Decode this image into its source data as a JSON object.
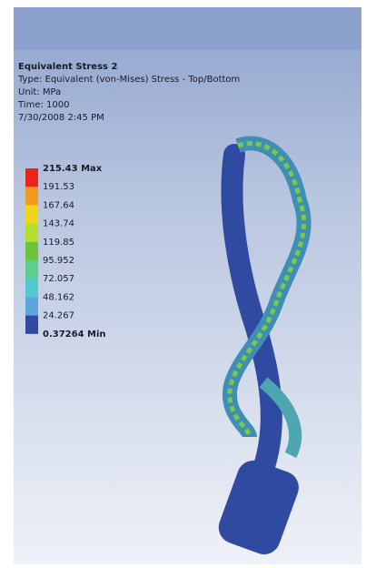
{
  "header": {
    "title": "Equivalent Stress 2",
    "type": "Type: Equivalent (von-Mises) Stress - Top/Bottom",
    "unit": "Unit: MPa",
    "time": "Time: 1000",
    "date": "7/30/2008 2:45 PM"
  },
  "legend": {
    "labels": [
      "215.43 Max",
      "191.53",
      "167.64",
      "143.74",
      "119.85",
      "95.952",
      "72.057",
      "48.162",
      "24.267",
      "0.37264 Min"
    ],
    "colors": [
      "#e8241c",
      "#f19a1e",
      "#efd51e",
      "#b7dd2c",
      "#6cc43a",
      "#5dcf8c",
      "#52c9cf",
      "#5aa6dd",
      "#2f4aa0"
    ]
  }
}
